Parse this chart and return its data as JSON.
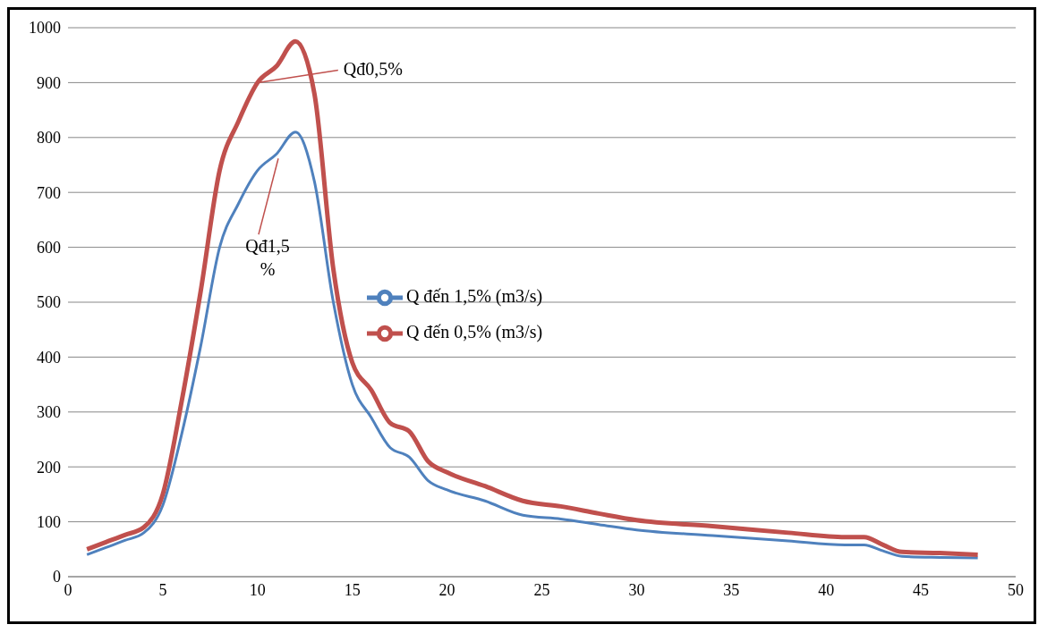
{
  "chart_data": {
    "type": "line",
    "x": [
      1,
      2,
      3,
      4,
      5,
      6,
      7,
      8,
      9,
      10,
      11,
      12,
      13,
      14,
      15,
      16,
      17,
      18,
      19,
      20,
      22,
      24,
      26,
      28,
      30,
      34,
      38,
      41,
      42,
      43,
      44,
      46,
      48
    ],
    "series": [
      {
        "name": "Q đến 1,5% (m3/s)",
        "color": "#4f81bd",
        "values": [
          40,
          53,
          66,
          80,
          130,
          260,
          420,
          600,
          680,
          740,
          770,
          810,
          720,
          500,
          350,
          290,
          235,
          218,
          175,
          158,
          138,
          112,
          105,
          95,
          85,
          75,
          65,
          58,
          58,
          47,
          37,
          35,
          34
        ]
      },
      {
        "name": "Q đến 0,5% (m3/s)",
        "color": "#c0504d",
        "values": [
          50,
          63,
          76,
          90,
          150,
          320,
          520,
          740,
          830,
          900,
          930,
          975,
          880,
          560,
          390,
          340,
          280,
          265,
          210,
          190,
          165,
          138,
          128,
          115,
          103,
          92,
          80,
          72,
          72,
          58,
          45,
          43,
          40
        ]
      }
    ],
    "xlim": [
      0,
      50
    ],
    "xticks": [
      0,
      5,
      10,
      15,
      20,
      25,
      30,
      35,
      40,
      45,
      50
    ],
    "ylim": [
      0,
      1000
    ],
    "yticks": [
      0,
      100,
      200,
      300,
      400,
      500,
      600,
      700,
      800,
      900,
      1000
    ],
    "grid": "y",
    "legend": "center",
    "marker": "none",
    "line_style": "solid",
    "annotations": [
      {
        "text": "Qđ0,5%",
        "x": 10,
        "y": 900
      },
      {
        "text": "Qđ1,5%",
        "x": 11,
        "y": 770
      }
    ]
  }
}
